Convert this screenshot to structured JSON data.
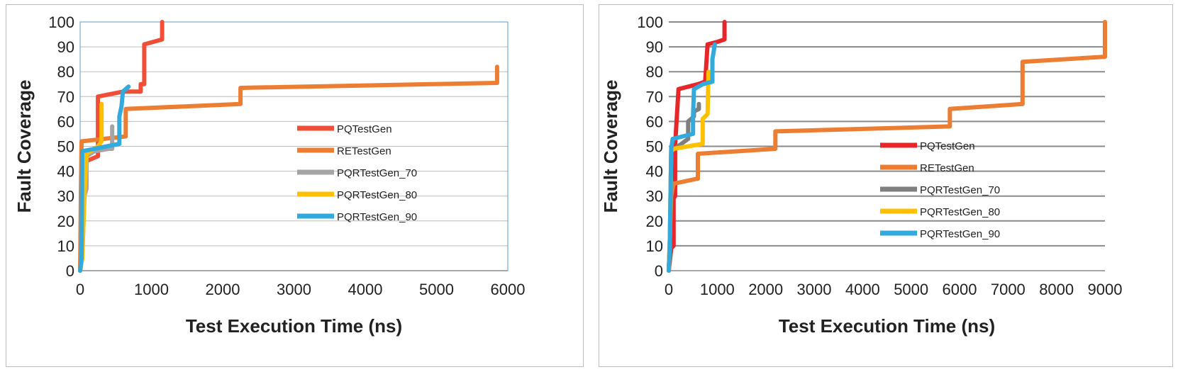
{
  "chart_data": [
    {
      "type": "line",
      "title": "",
      "xlabel": "Test Execution Time (ns)",
      "ylabel": "Fault Coverage",
      "xlim": [
        0,
        6000
      ],
      "ylim": [
        0,
        100
      ],
      "xticks": [
        "0",
        "1000",
        "2000",
        "3000",
        "4000",
        "5000",
        "6000"
      ],
      "yticks": [
        "0",
        "10",
        "20",
        "30",
        "40",
        "50",
        "60",
        "70",
        "80",
        "90",
        "100"
      ],
      "grid": "horizontal",
      "legend_position": "center-right",
      "series": [
        {
          "name": "PQTestGen",
          "color": "#f04e37",
          "points": [
            [
              0,
              0
            ],
            [
              20,
              10
            ],
            [
              40,
              28
            ],
            [
              60,
              38
            ],
            [
              80,
              44
            ],
            [
              250,
              46
            ],
            [
              250,
              70
            ],
            [
              600,
              72
            ],
            [
              850,
              72
            ],
            [
              850,
              75
            ],
            [
              900,
              75
            ],
            [
              900,
              91
            ],
            [
              1150,
              93
            ],
            [
              1150,
              100
            ]
          ]
        },
        {
          "name": "RETestGen",
          "color": "#ed7d31",
          "points": [
            [
              0,
              0
            ],
            [
              10,
              30
            ],
            [
              20,
              52
            ],
            [
              640,
              54
            ],
            [
              640,
              65
            ],
            [
              2250,
              67
            ],
            [
              2250,
              73.5
            ],
            [
              5850,
              75.5
            ],
            [
              5850,
              82
            ]
          ]
        },
        {
          "name": "PQRTestGen_70",
          "color": "#a5a5a5",
          "points": [
            [
              0,
              0
            ],
            [
              30,
              5
            ],
            [
              60,
              30
            ],
            [
              90,
              33
            ],
            [
              90,
              46
            ],
            [
              200,
              48
            ],
            [
              400,
              49
            ],
            [
              450,
              49
            ],
            [
              450,
              58
            ]
          ]
        },
        {
          "name": "PQRTestGen_80",
          "color": "#ffc000",
          "points": [
            [
              0,
              0
            ],
            [
              30,
              5
            ],
            [
              60,
              30
            ],
            [
              90,
              47
            ],
            [
              250,
              50
            ],
            [
              300,
              52
            ],
            [
              300,
              67
            ]
          ]
        },
        {
          "name": "PQRTestGen_90",
          "color": "#33aadd",
          "points": [
            [
              0,
              0
            ],
            [
              20,
              5
            ],
            [
              30,
              48
            ],
            [
              200,
              49
            ],
            [
              550,
              51
            ],
            [
              550,
              62
            ],
            [
              580,
              66
            ],
            [
              600,
              72
            ],
            [
              680,
              74
            ]
          ]
        }
      ]
    },
    {
      "type": "line",
      "title": "",
      "xlabel": "Test Execution Time (ns)",
      "ylabel": "Fault Coverage",
      "xlim": [
        0,
        9000
      ],
      "ylim": [
        0,
        100
      ],
      "xticks": [
        "0",
        "1000",
        "2000",
        "3000",
        "4000",
        "5000",
        "6000",
        "7000",
        "8000",
        "9000"
      ],
      "yticks": [
        "0",
        "10",
        "20",
        "30",
        "40",
        "50",
        "60",
        "70",
        "80",
        "90",
        "100"
      ],
      "grid": "horizontal",
      "legend_position": "center-right",
      "series": [
        {
          "name": "PQTestGen",
          "color": "#e8262a",
          "points": [
            [
              0,
              0
            ],
            [
              50,
              9
            ],
            [
              100,
              10
            ],
            [
              100,
              29
            ],
            [
              130,
              30
            ],
            [
              130,
              50
            ],
            [
              150,
              57
            ],
            [
              200,
              73
            ],
            [
              600,
              75
            ],
            [
              750,
              76
            ],
            [
              800,
              91
            ],
            [
              1000,
              92
            ],
            [
              1150,
              93
            ],
            [
              1150,
              100
            ]
          ]
        },
        {
          "name": "RETestGen",
          "color": "#ed7d31",
          "points": [
            [
              0,
              0
            ],
            [
              50,
              30
            ],
            [
              100,
              35
            ],
            [
              600,
              37
            ],
            [
              600,
              47
            ],
            [
              2200,
              49
            ],
            [
              2200,
              56
            ],
            [
              5800,
              58
            ],
            [
              5800,
              65
            ],
            [
              7300,
              67
            ],
            [
              7300,
              84
            ],
            [
              9000,
              86
            ],
            [
              9000,
              100
            ]
          ]
        },
        {
          "name": "PQRTestGen_70",
          "color": "#7f7f7f",
          "points": [
            [
              0,
              0
            ],
            [
              20,
              10
            ],
            [
              50,
              48
            ],
            [
              400,
              53
            ],
            [
              400,
              60
            ],
            [
              520,
              62
            ],
            [
              520,
              64
            ],
            [
              620,
              65
            ],
            [
              620,
              67
            ]
          ]
        },
        {
          "name": "PQRTestGen_80",
          "color": "#ffc000",
          "points": [
            [
              0,
              0
            ],
            [
              20,
              10
            ],
            [
              50,
              48
            ],
            [
              100,
              49
            ],
            [
              700,
              51
            ],
            [
              700,
              61
            ],
            [
              800,
              63
            ],
            [
              820,
              80
            ]
          ]
        },
        {
          "name": "PQRTestGen_90",
          "color": "#33aadd",
          "points": [
            [
              0,
              0
            ],
            [
              20,
              10
            ],
            [
              50,
              49
            ],
            [
              80,
              53
            ],
            [
              500,
              55
            ],
            [
              500,
              62
            ],
            [
              520,
              73
            ],
            [
              700,
              75
            ],
            [
              900,
              76
            ],
            [
              900,
              85
            ],
            [
              950,
              91
            ]
          ]
        }
      ]
    }
  ]
}
